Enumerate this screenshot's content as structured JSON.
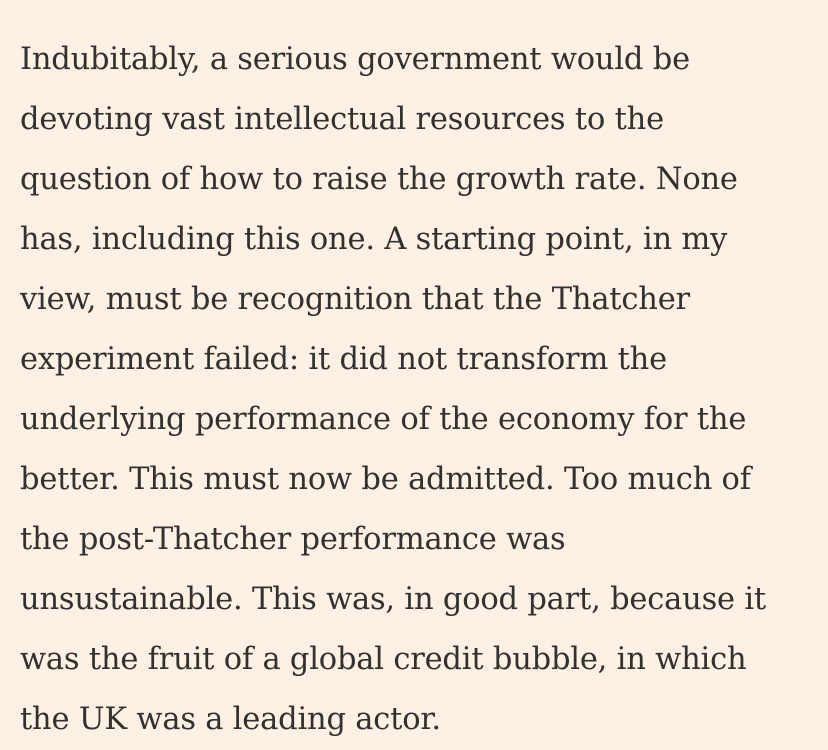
{
  "article": {
    "lines": [
      "Indubitably, a serious government would be",
      "devoting vast intellectual resources to the",
      "question of how to raise the growth rate. None",
      "has, including this one. A starting point, in my",
      "view, must be recognition that the Thatcher",
      "experiment failed: it did not transform the",
      "underlying performance of the economy for the",
      "better. This must now be admitted. Too much of",
      "the post-Thatcher performance was",
      "unsustainable. This was, in good part, because it",
      "was the fruit of a global credit bubble, in which",
      "the UK was a leading actor."
    ]
  }
}
